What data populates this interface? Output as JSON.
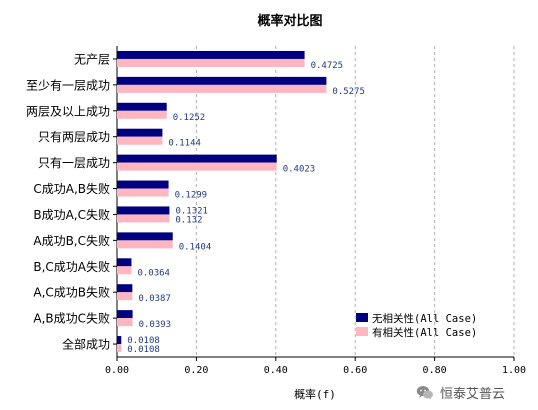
{
  "chart_data": {
    "type": "bar",
    "orientation": "horizontal",
    "title": "概率对比图",
    "xlabel": "概率(f)",
    "ylabel": "",
    "xlim": [
      0.0,
      1.0
    ],
    "xticks": [
      0.0,
      0.2,
      0.4,
      0.6,
      0.8,
      1.0
    ],
    "xtick_labels": [
      "0.00",
      "0.20",
      "0.40",
      "0.60",
      "0.80",
      "1.00"
    ],
    "grid": "vertical dashed",
    "legend_position": "bottom-right",
    "categories": [
      "无产层",
      "至少有一层成功",
      "两层及以上成功",
      "只有两层成功",
      "只有一层成功",
      "C成功A,B失败",
      "B成功A,C失败",
      "A成功B,C失败",
      "B,C成功A失败",
      "A,C成功B失败",
      "A,B成功C失败",
      "全部成功"
    ],
    "series": [
      {
        "name": "无相关性(All Case)",
        "color": "#000080",
        "values": [
          0.4725,
          0.5275,
          0.1252,
          0.1144,
          0.4023,
          0.1299,
          0.1321,
          0.1404,
          0.0364,
          0.0387,
          0.0393,
          0.0108
        ],
        "labels_shown": [
          false,
          false,
          false,
          false,
          false,
          false,
          true,
          false,
          false,
          false,
          false,
          true
        ]
      },
      {
        "name": "有相关性(All Case)",
        "color": "#ffb6c1",
        "values": [
          0.4725,
          0.5275,
          0.1252,
          0.1144,
          0.4023,
          0.1299,
          0.132,
          0.1404,
          0.0364,
          0.0387,
          0.0393,
          0.0108
        ],
        "labels_shown": [
          true,
          true,
          true,
          true,
          true,
          true,
          true,
          true,
          true,
          true,
          true,
          true
        ]
      }
    ],
    "data_labels": {
      "s0": [
        "",
        "",
        "",
        "",
        "",
        "",
        "0.1321",
        "",
        "",
        "",
        "",
        "0.0108"
      ],
      "s1": [
        "0.4725",
        "0.5275",
        "0.1252",
        "0.1144",
        "0.4023",
        "0.1299",
        "0.132",
        "0.1404",
        "0.0364",
        "0.0387",
        "0.0393",
        "0.0108"
      ]
    }
  },
  "watermark": {
    "text": "恒泰艾普云",
    "icon": "wechat-icon"
  }
}
